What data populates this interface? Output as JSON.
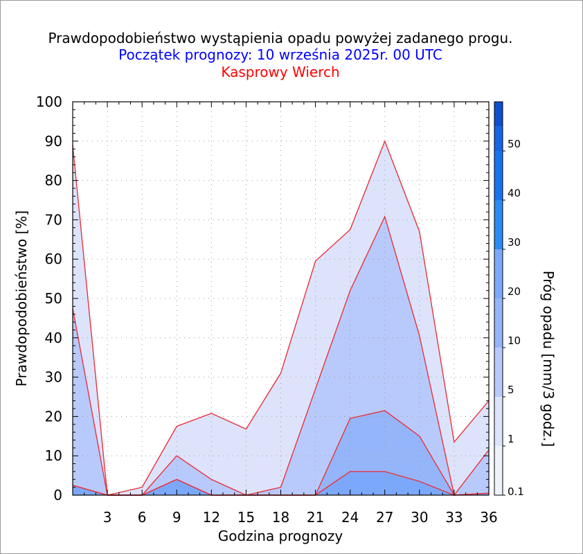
{
  "header": {
    "title": "Prawdopodobieństwo wystąpienia opadu powyżej zadanego progu.",
    "subtitle": "Początek prognozy: 10 września 2025r. 00 UTC",
    "location": "Kasprowy Wierch"
  },
  "colors": {
    "title": "#000000",
    "subtitle": "#0000ff",
    "location": "#ff0000",
    "series_line": "#e8323c",
    "grid": "#999999"
  },
  "chart_data": {
    "type": "area",
    "title": "Prawdopodobieństwo wystąpienia opadu powyżej zadanego progu.",
    "xlabel": "Godzina prognozy",
    "ylabel": "Prawdopodobieństwo [%]",
    "xlim": [
      0,
      36
    ],
    "ylim": [
      0,
      100
    ],
    "x_ticks": [
      3,
      6,
      9,
      12,
      15,
      18,
      21,
      24,
      27,
      30,
      33,
      36
    ],
    "y_ticks": [
      0,
      10,
      20,
      30,
      40,
      50,
      60,
      70,
      80,
      90,
      100
    ],
    "grid": true,
    "x": [
      0,
      3,
      6,
      9,
      12,
      15,
      18,
      21,
      24,
      27,
      30,
      33,
      36
    ],
    "series": [
      {
        "name": "0.1",
        "color": "#dde3fb",
        "values": [
          89,
          0,
          2,
          17.5,
          20.8,
          16.8,
          31,
          59.5,
          67.5,
          90,
          67,
          13.5,
          24
        ]
      },
      {
        "name": "1",
        "color": "#b8cafb",
        "values": [
          47.5,
          0,
          0,
          10,
          4,
          0,
          2,
          27,
          52,
          70.8,
          40.5,
          0,
          11.5
        ]
      },
      {
        "name": "5",
        "color": "#95b5fa",
        "values": [
          2.5,
          0,
          0,
          4,
          0,
          0,
          0,
          0,
          19.5,
          21.5,
          15,
          0,
          0.5
        ]
      },
      {
        "name": "10",
        "color": "#7ca8fc",
        "values": [
          2.5,
          0,
          0,
          4,
          0,
          0,
          0,
          0,
          6,
          6,
          3.5,
          0,
          0.5
        ]
      }
    ],
    "colorbar": {
      "label": "Próg opadu [mm/3 godz.]",
      "tick_labels": [
        "0.1",
        "1",
        "5",
        "10",
        "20",
        "30",
        "40",
        "50"
      ],
      "bands": [
        "#eff2fd",
        "#dde3fb",
        "#b8cafb",
        "#95b5fa",
        "#7ca8fc",
        "#2a8bf5",
        "#1774ef",
        "#1566e6",
        "#0d4fd0",
        "#0a3fb0"
      ]
    }
  }
}
